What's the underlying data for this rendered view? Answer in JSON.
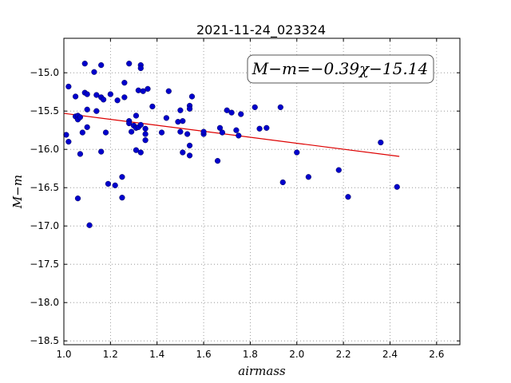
{
  "chart_data": {
    "type": "scatter",
    "title": "2021-11-24_023324",
    "xlabel": "airmass",
    "ylabel": "M−m",
    "xlim": [
      1.0,
      2.7
    ],
    "ylim": [
      -18.55,
      -14.55
    ],
    "x_ticks": [
      1.0,
      1.2,
      1.4,
      1.6,
      1.8,
      2.0,
      2.2,
      2.4,
      2.6
    ],
    "x_tick_labels": [
      "1.0",
      "1.2",
      "1.4",
      "1.6",
      "1.8",
      "2.0",
      "2.2",
      "2.4",
      "2.6"
    ],
    "y_ticks": [
      -15.0,
      -15.5,
      -16.0,
      -16.5,
      -17.0,
      -17.5,
      -18.0,
      -18.5
    ],
    "y_tick_labels": [
      "−15.0",
      "−15.5",
      "−16.0",
      "−16.5",
      "−17.0",
      "−17.5",
      "−18.0",
      "−18.5"
    ],
    "grid": true,
    "annotation": "M−m=−0.39χ−15.14",
    "colors": {
      "points": "#0000cc",
      "fit": "#dd0000",
      "grid": "#888888"
    },
    "fit_line": {
      "slope": -0.39,
      "intercept": -15.14,
      "x": [
        1.0,
        2.44
      ]
    },
    "points": [
      [
        1.01,
        -15.81
      ],
      [
        1.02,
        -15.18
      ],
      [
        1.02,
        -15.9
      ],
      [
        1.05,
        -15.31
      ],
      [
        1.05,
        -15.57
      ],
      [
        1.06,
        -15.56
      ],
      [
        1.06,
        -15.61
      ],
      [
        1.06,
        -16.64
      ],
      [
        1.07,
        -15.58
      ],
      [
        1.07,
        -16.06
      ],
      [
        1.08,
        -15.78
      ],
      [
        1.09,
        -14.88
      ],
      [
        1.09,
        -15.26
      ],
      [
        1.1,
        -15.28
      ],
      [
        1.1,
        -15.48
      ],
      [
        1.1,
        -15.71
      ],
      [
        1.11,
        -16.99
      ],
      [
        1.13,
        -14.99
      ],
      [
        1.14,
        -15.29
      ],
      [
        1.14,
        -15.5
      ],
      [
        1.16,
        -14.9
      ],
      [
        1.16,
        -15.32
      ],
      [
        1.16,
        -16.03
      ],
      [
        1.17,
        -15.35
      ],
      [
        1.18,
        -15.78
      ],
      [
        1.19,
        -16.45
      ],
      [
        1.2,
        -15.28
      ],
      [
        1.22,
        -16.47
      ],
      [
        1.23,
        -15.36
      ],
      [
        1.25,
        -16.36
      ],
      [
        1.25,
        -16.63
      ],
      [
        1.26,
        -15.13
      ],
      [
        1.26,
        -15.32
      ],
      [
        1.28,
        -14.88
      ],
      [
        1.28,
        -15.63
      ],
      [
        1.28,
        -15.66
      ],
      [
        1.29,
        -15.77
      ],
      [
        1.3,
        -15.69
      ],
      [
        1.31,
        -15.56
      ],
      [
        1.31,
        -15.72
      ],
      [
        1.31,
        -16.01
      ],
      [
        1.32,
        -15.23
      ],
      [
        1.32,
        -15.71
      ],
      [
        1.33,
        -14.9
      ],
      [
        1.33,
        -14.94
      ],
      [
        1.33,
        -15.68
      ],
      [
        1.33,
        -16.04
      ],
      [
        1.34,
        -15.24
      ],
      [
        1.35,
        -15.73
      ],
      [
        1.35,
        -15.8
      ],
      [
        1.35,
        -15.88
      ],
      [
        1.36,
        -15.21
      ],
      [
        1.38,
        -15.44
      ],
      [
        1.42,
        -15.78
      ],
      [
        1.44,
        -15.59
      ],
      [
        1.45,
        -15.24
      ],
      [
        1.49,
        -15.64
      ],
      [
        1.5,
        -15.77
      ],
      [
        1.5,
        -15.49
      ],
      [
        1.51,
        -15.63
      ],
      [
        1.51,
        -16.04
      ],
      [
        1.53,
        -15.8
      ],
      [
        1.54,
        -15.43
      ],
      [
        1.54,
        -15.47
      ],
      [
        1.54,
        -15.95
      ],
      [
        1.54,
        -16.08
      ],
      [
        1.55,
        -15.31
      ],
      [
        1.6,
        -15.8
      ],
      [
        1.6,
        -15.77
      ],
      [
        1.66,
        -16.15
      ],
      [
        1.67,
        -15.72
      ],
      [
        1.68,
        -15.78
      ],
      [
        1.7,
        -15.49
      ],
      [
        1.72,
        -15.52
      ],
      [
        1.74,
        -15.75
      ],
      [
        1.75,
        -15.82
      ],
      [
        1.76,
        -15.54
      ],
      [
        1.82,
        -15.45
      ],
      [
        1.84,
        -15.73
      ],
      [
        1.87,
        -15.72
      ],
      [
        1.93,
        -15.45
      ],
      [
        1.94,
        -16.43
      ],
      [
        2.0,
        -16.04
      ],
      [
        2.05,
        -16.36
      ],
      [
        2.18,
        -16.27
      ],
      [
        2.22,
        -16.62
      ],
      [
        2.36,
        -15.91
      ],
      [
        2.43,
        -16.49
      ]
    ]
  }
}
